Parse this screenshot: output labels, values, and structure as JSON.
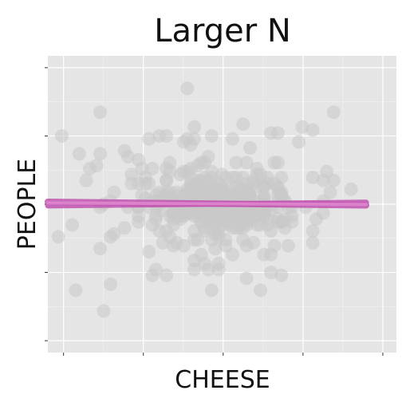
{
  "chart_data": {
    "type": "scatter",
    "title": "Larger N",
    "xlabel": "CHEESE",
    "ylabel": "PEOPLE",
    "xlim": [
      0.0,
      1.0
    ],
    "ylim": [
      0.0,
      1.0
    ],
    "grid": true,
    "tick_labels_shown": false,
    "background": "#e5e5e5",
    "point_color": "#c8c8c8",
    "line_color": "#c154b0",
    "line_color_light": "#e08ad0",
    "points_x": [
      0.56,
      0.28,
      0.31,
      0.53,
      0.08,
      0.18,
      0.34,
      0.47,
      0.15,
      0.64,
      0.42,
      0.35,
      0.54,
      0.03,
      0.04,
      0.15,
      0.4,
      0.65,
      0.41,
      0.29,
      0.76,
      0.16,
      0.6,
      0.61,
      0.82,
      0.47,
      0.32,
      0.33,
      0.59,
      0.61,
      0.79,
      0.66,
      0.3,
      0.16,
      0.49,
      0.09,
      0.45,
      0.44,
      0.56,
      0.8,
      0.64,
      0.24,
      0.87,
      0.18,
      0.49,
      0.51,
      0.33,
      0.41,
      0.49,
      0.51,
      0.62,
      0.39,
      0.42,
      0.57,
      0.45,
      0.44,
      0.53,
      0.56,
      0.28,
      0.76,
      0.79,
      0.38,
      0.53,
      0.26,
      0.76,
      0.26,
      0.39,
      0.46,
      0.6,
      0.47,
      0.63,
      0.5,
      0.53,
      0.65,
      0.29,
      0.14,
      0.18,
      0.64,
      0.34,
      0.72,
      0.3,
      0.12,
      0.48,
      0.22,
      0.4,
      0.07,
      0.48,
      0.66,
      0.42,
      0.37,
      0.74,
      0.57,
      0.32,
      0.56,
      0.69,
      0.58,
      0.67,
      0.81,
      0.49,
      0.42,
      0.43,
      0.66,
      0.42,
      0.69,
      0.53,
      0.43,
      0.48,
      0.34,
      0.11,
      0.42,
      0.64,
      0.48,
      0.56,
      0.58,
      0.4,
      0.22,
      0.73,
      0.37,
      0.29,
      0.27,
      0.41,
      0.49,
      0.41,
      0.46,
      0.3,
      0.15,
      0.36,
      0.47,
      0.37,
      0.82,
      0.52,
      0.41,
      0.35,
      0.26,
      0.55,
      0.4,
      0.54,
      0.3,
      0.7,
      0.68,
      0.76,
      0.51,
      0.33,
      0.47,
      0.35,
      0.5,
      0.54,
      0.55,
      0.44,
      0.45,
      0.43,
      0.44,
      0.45,
      0.34,
      0.62,
      0.46,
      0.67,
      0.51,
      0.66,
      0.79,
      0.43,
      0.54,
      0.37,
      0.42,
      0.45,
      0.34,
      0.48,
      0.56,
      0.57,
      0.63,
      0.62,
      0.46,
      0.24,
      0.39,
      0.34,
      0.31,
      0.47,
      0.48,
      0.43,
      0.4,
      0.62,
      0.54,
      0.44,
      0.67,
      0.19,
      0.31,
      0.54,
      0.15,
      0.39,
      0.42,
      0.19,
      0.23,
      0.52,
      0.56,
      0.31,
      0.47,
      0.57,
      0.39,
      0.64,
      0.4,
      0.46,
      0.44,
      0.63,
      0.41,
      0.44,
      0.66,
      0.26,
      0.66,
      0.38,
      0.58,
      0.57,
      0.42,
      0.43,
      0.58,
      0.26,
      0.43,
      0.66,
      0.53,
      0.51,
      0.47,
      0.43,
      0.7,
      0.45,
      0.56,
      0.23,
      0.55,
      0.36,
      0.36,
      0.5,
      0.36,
      0.58,
      0.61,
      0.65,
      0.27,
      0.43,
      0.29,
      0.68,
      0.6,
      0.68,
      0.36,
      0.36,
      0.59,
      0.62,
      0.63,
      0.47,
      0.37,
      0.4,
      0.47,
      0.35,
      0.55,
      0.37,
      0.59,
      0.63,
      0.67,
      0.59,
      0.28,
      0.46,
      0.39,
      0.58,
      0.34,
      0.77,
      0.49,
      0.46,
      0.68,
      0.41,
      0.55,
      0.58,
      0.43,
      0.43,
      0.67,
      0.66,
      0.62,
      0.34,
      0.62,
      0.42,
      0.54,
      0.47,
      0.35,
      0.45,
      0.67,
      0.58,
      0.5,
      0.58,
      0.38,
      0.67,
      0.49,
      0.48,
      0.26,
      0.39,
      0.62,
      0.45,
      0.59,
      0.35,
      0.57,
      0.57,
      0.46,
      0.51,
      0.51,
      0.53,
      0.51,
      0.54,
      0.59,
      0.46,
      0.7,
      0.54,
      0.38,
      0.34,
      0.43,
      0.62,
      0.66,
      0.57,
      0.55,
      0.46,
      0.32,
      0.35,
      0.5,
      0.49,
      0.53,
      0.51,
      0.6,
      0.55,
      0.42,
      0.61,
      0.49,
      0.57,
      0.4,
      0.49,
      0.46,
      0.4,
      0.6,
      0.55,
      0.45,
      0.38,
      0.61,
      0.47,
      0.51,
      0.44,
      0.51,
      0.31,
      0.49,
      0.62,
      0.58,
      0.45,
      0.49,
      0.46,
      0.38,
      0.55,
      0.4,
      0.59,
      0.32,
      0.6,
      0.45,
      0.42,
      0.44,
      0.59,
      0.58,
      0.5,
      0.5,
      0.42,
      0.52,
      0.62,
      0.43,
      0.55,
      0.31,
      0.55,
      0.49,
      0.57,
      0.44,
      0.43,
      0.53,
      0.48,
      0.48,
      0.44,
      0.52,
      0.48,
      0.4,
      0.49,
      0.54,
      0.58,
      0.51,
      0.45,
      0.46,
      0.55,
      0.41,
      0.52,
      0.5,
      0.45,
      0.48,
      0.57,
      0.45,
      0.45,
      0.4,
      0.45,
      0.53,
      0.54,
      0.5,
      0.57,
      0.49,
      0.42,
      0.49,
      0.54,
      0.43,
      0.44,
      0.4,
      0.5,
      0.44,
      0.48,
      0.5,
      0.46,
      0.49,
      0.51,
      0.42,
      0.54,
      0.52,
      0.55,
      0.46,
      0.45,
      0.44,
      0.45,
      0.49,
      0.51,
      0.52,
      0.48,
      0.48,
      0.5,
      0.44
    ],
    "points_y": [
      0.77,
      0.57,
      0.28,
      0.72,
      0.21,
      0.23,
      0.73,
      0.47,
      0.81,
      0.41,
      0.41,
      0.64,
      0.64,
      0.39,
      0.73,
      0.67,
      0.89,
      0.64,
      0.7,
      0.34,
      0.59,
      0.14,
      0.62,
      0.21,
      0.81,
      0.21,
      0.73,
      0.37,
      0.37,
      0.6,
      0.51,
      0.74,
      0.26,
      0.5,
      0.28,
      0.67,
      0.3,
      0.33,
      0.55,
      0.61,
      0.33,
      0.6,
      0.55,
      0.51,
      0.3,
      0.36,
      0.48,
      0.57,
      0.4,
      0.44,
      0.33,
      0.51,
      0.31,
      0.25,
      0.64,
      0.64,
      0.59,
      0.38,
      0.59,
      0.37,
      0.58,
      0.6,
      0.33,
      0.65,
      0.75,
      0.49,
      0.71,
      0.28,
      0.6,
      0.73,
      0.45,
      0.6,
      0.53,
      0.36,
      0.49,
      0.63,
      0.39,
      0.27,
      0.26,
      0.71,
      0.62,
      0.62,
      0.35,
      0.68,
      0.61,
      0.43,
      0.4,
      0.49,
      0.28,
      0.54,
      0.49,
      0.55,
      0.41,
      0.42,
      0.36,
      0.52,
      0.26,
      0.54,
      0.39,
      0.38,
      0.52,
      0.56,
      0.76,
      0.49,
      0.45,
      0.55,
      0.44,
      0.62,
      0.58,
      0.72,
      0.74,
      0.55,
      0.46,
      0.69,
      0.72,
      0.42,
      0.76,
      0.37,
      0.72,
      0.62,
      0.62,
      0.57,
      0.53,
      0.66,
      0.43,
      0.35,
      0.36,
      0.56,
      0.51,
      0.58,
      0.43,
      0.56,
      0.61,
      0.44,
      0.42,
      0.47,
      0.42,
      0.51,
      0.46,
      0.42,
      0.41,
      0.47,
      0.52,
      0.42,
      0.39,
      0.5,
      0.52,
      0.43,
      0.58,
      0.47,
      0.38,
      0.44,
      0.59,
      0.53,
      0.52,
      0.48,
      0.44,
      0.38,
      0.64,
      0.47,
      0.54,
      0.59,
      0.5,
      0.53,
      0.53,
      0.58,
      0.45,
      0.53,
      0.36,
      0.43,
      0.46,
      0.54,
      0.57,
      0.61,
      0.58,
      0.51,
      0.38,
      0.45,
      0.46,
      0.47,
      0.52,
      0.56,
      0.5,
      0.44,
      0.4,
      0.46,
      0.52,
      0.49,
      0.36,
      0.52,
      0.54,
      0.66,
      0.44,
      0.45,
      0.45,
      0.59,
      0.64,
      0.46,
      0.48,
      0.55,
      0.58,
      0.44,
      0.59,
      0.59,
      0.55,
      0.53,
      0.49,
      0.45,
      0.49,
      0.53,
      0.43,
      0.54,
      0.58,
      0.5,
      0.57,
      0.56,
      0.51,
      0.42,
      0.59,
      0.44,
      0.63,
      0.49,
      0.49,
      0.59,
      0.49,
      0.48,
      0.51,
      0.47,
      0.43,
      0.45,
      0.5,
      0.43,
      0.57,
      0.53,
      0.5,
      0.57,
      0.51,
      0.43,
      0.45,
      0.43,
      0.47,
      0.57,
      0.48,
      0.49,
      0.61,
      0.53,
      0.49,
      0.49,
      0.46,
      0.54,
      0.49,
      0.58,
      0.57,
      0.53,
      0.46,
      0.52,
      0.45,
      0.53,
      0.51,
      0.41,
      0.45,
      0.42,
      0.51,
      0.51,
      0.47,
      0.54,
      0.45,
      0.52,
      0.57,
      0.53,
      0.44,
      0.53,
      0.54,
      0.49,
      0.56,
      0.46,
      0.57,
      0.54,
      0.41,
      0.59,
      0.46,
      0.46,
      0.53,
      0.47,
      0.54,
      0.46,
      0.47,
      0.46,
      0.5,
      0.56,
      0.42,
      0.51,
      0.51,
      0.49,
      0.44,
      0.47,
      0.5,
      0.54,
      0.48,
      0.48,
      0.46,
      0.45,
      0.47,
      0.44,
      0.47,
      0.46,
      0.52,
      0.48,
      0.5,
      0.55,
      0.57,
      0.52,
      0.45,
      0.5,
      0.51,
      0.48,
      0.55,
      0.51,
      0.5,
      0.49,
      0.49,
      0.56,
      0.48,
      0.48,
      0.54,
      0.53,
      0.51,
      0.55,
      0.53,
      0.56,
      0.55,
      0.51,
      0.45,
      0.47,
      0.48,
      0.51,
      0.52,
      0.49,
      0.53,
      0.48,
      0.56,
      0.47,
      0.54,
      0.48,
      0.49,
      0.48,
      0.5,
      0.51,
      0.49,
      0.54,
      0.46,
      0.53,
      0.51,
      0.51,
      0.48,
      0.5,
      0.56,
      0.55,
      0.46,
      0.52,
      0.47,
      0.52,
      0.48,
      0.49,
      0.53,
      0.49,
      0.5,
      0.51,
      0.47,
      0.47,
      0.49,
      0.49,
      0.51,
      0.55,
      0.49,
      0.52,
      0.54,
      0.52,
      0.53,
      0.53,
      0.47,
      0.48,
      0.5,
      0.51,
      0.48,
      0.52,
      0.49,
      0.49,
      0.51,
      0.51,
      0.49,
      0.54,
      0.46,
      0.49,
      0.51,
      0.48,
      0.48,
      0.5,
      0.49,
      0.49,
      0.53,
      0.47,
      0.52,
      0.48,
      0.52,
      0.48,
      0.5,
      0.51,
      0.49,
      0.5,
      0.49,
      0.5,
      0.52,
      0.5,
      0.5,
      0.52,
      0.49,
      0.5,
      0.49,
      0.49,
      0.48,
      0.5,
      0.51,
      0.51,
      0.49,
      0.5,
      0.5
    ],
    "regression_lines": [
      {
        "x": [
          0.0,
          1.0
        ],
        "y": [
          0.508,
          0.495
        ],
        "stroke": 8
      },
      {
        "x": [
          0.0,
          1.0
        ],
        "y": [
          0.495,
          0.507
        ],
        "stroke": 7
      },
      {
        "x": [
          0.0,
          1.0
        ],
        "y": [
          0.504,
          0.499
        ],
        "stroke": 4
      }
    ]
  }
}
